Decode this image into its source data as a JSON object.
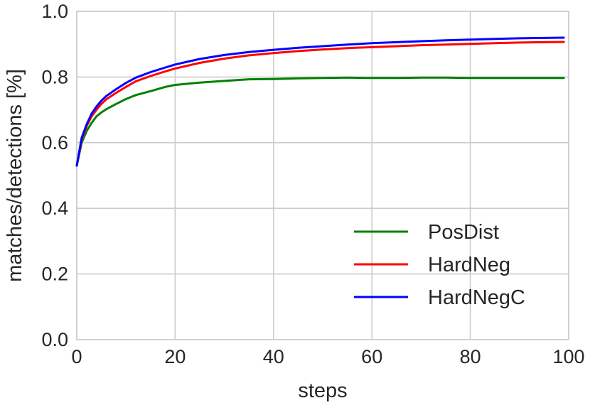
{
  "chart_data": {
    "type": "line",
    "title": "",
    "xlabel": "steps",
    "ylabel": "matches/detections [%]",
    "xlim": [
      0,
      100
    ],
    "ylim": [
      0.0,
      1.0
    ],
    "xticks": [
      "0",
      "20",
      "40",
      "60",
      "80",
      "100"
    ],
    "yticks": [
      "0.0",
      "0.2",
      "0.4",
      "0.6",
      "0.8",
      "1.0"
    ],
    "grid": true,
    "legend": "lower-right",
    "x": [
      0,
      1,
      2,
      3,
      4,
      5,
      6,
      8,
      10,
      12,
      15,
      18,
      20,
      25,
      30,
      35,
      40,
      45,
      50,
      55,
      60,
      65,
      70,
      75,
      80,
      85,
      90,
      95,
      99
    ],
    "series": [
      {
        "name": "PosDist",
        "color": "#008000",
        "values": [
          0.53,
          0.6,
          0.635,
          0.66,
          0.68,
          0.692,
          0.702,
          0.718,
          0.733,
          0.745,
          0.757,
          0.77,
          0.776,
          0.783,
          0.788,
          0.793,
          0.794,
          0.796,
          0.797,
          0.798,
          0.797,
          0.797,
          0.798,
          0.798,
          0.797,
          0.797,
          0.797,
          0.797,
          0.797
        ]
      },
      {
        "name": "HardNeg",
        "color": "#ff0000",
        "values": [
          0.53,
          0.61,
          0.65,
          0.68,
          0.7,
          0.718,
          0.732,
          0.752,
          0.77,
          0.787,
          0.803,
          0.817,
          0.826,
          0.843,
          0.856,
          0.866,
          0.873,
          0.879,
          0.884,
          0.888,
          0.891,
          0.894,
          0.897,
          0.899,
          0.901,
          0.903,
          0.905,
          0.906,
          0.907
        ]
      },
      {
        "name": "HardNegC",
        "color": "#0000ff",
        "values": [
          0.53,
          0.615,
          0.655,
          0.688,
          0.71,
          0.728,
          0.742,
          0.763,
          0.782,
          0.798,
          0.815,
          0.829,
          0.838,
          0.855,
          0.867,
          0.876,
          0.883,
          0.889,
          0.894,
          0.899,
          0.903,
          0.906,
          0.909,
          0.912,
          0.914,
          0.916,
          0.918,
          0.919,
          0.92
        ]
      }
    ]
  }
}
